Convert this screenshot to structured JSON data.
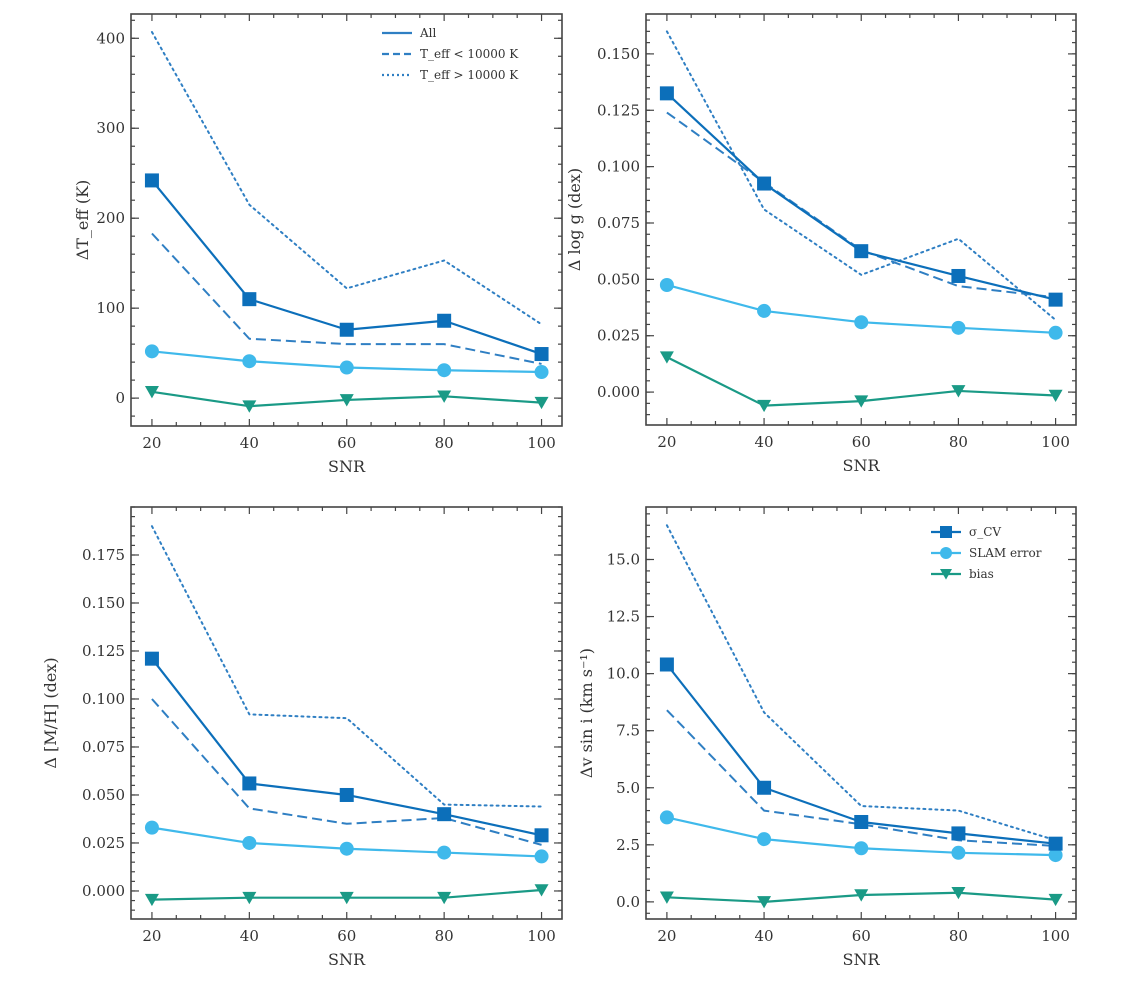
{
  "figure": {
    "colors": {
      "sigma_cv": "#0C6FBA",
      "slam_error": "#3FB9EB",
      "bias": "#1A9A86",
      "subset": "#2F7FC3",
      "frame": "#444444",
      "text": "#333333"
    }
  },
  "chart_data": [
    {
      "type": "line",
      "panel": "top-left",
      "title": "",
      "xlabel": "SNR",
      "ylabel": "ΔT_eff (K)",
      "x": [
        20,
        40,
        60,
        80,
        100
      ],
      "xlim": [
        15.7,
        104.2
      ],
      "ylim": [
        -31,
        427
      ],
      "xticks": [
        20,
        40,
        60,
        80,
        100
      ],
      "xtick_labels": [
        "20",
        "40",
        "60",
        "80",
        "100"
      ],
      "yticks": [
        0,
        100,
        200,
        300,
        400
      ],
      "ytick_labels": [
        "0",
        "100",
        "200",
        "300",
        "400"
      ],
      "yminor": 20,
      "grid": false,
      "legend": {
        "placement": "top-right",
        "entries": [
          {
            "label": "All",
            "style": "solid"
          },
          {
            "label": "T_eff < 10000 K",
            "style": "dashed"
          },
          {
            "label": "T_eff > 10000 K",
            "style": "dotted"
          }
        ]
      },
      "series": [
        {
          "name": "σ_CV (All)",
          "key": "sigma_cv",
          "style": "solid",
          "marker": "square",
          "values": [
            242,
            110,
            76,
            86,
            49
          ]
        },
        {
          "name": "σ_CV (T_eff < 10000 K)",
          "key": "subset",
          "style": "dashed",
          "marker": "none",
          "values": [
            183,
            66,
            60,
            60,
            38
          ]
        },
        {
          "name": "σ_CV (T_eff > 10000 K)",
          "key": "subset",
          "style": "dotted",
          "marker": "none",
          "values": [
            407,
            215,
            122,
            153,
            82
          ]
        },
        {
          "name": "SLAM error",
          "key": "slam_error",
          "style": "solid",
          "marker": "circle",
          "values": [
            52,
            41,
            34,
            31,
            29
          ]
        },
        {
          "name": "bias",
          "key": "bias",
          "style": "solid",
          "marker": "triangle-down",
          "values": [
            7,
            -9,
            -2,
            2,
            -5
          ]
        }
      ]
    },
    {
      "type": "line",
      "panel": "top-right",
      "title": "",
      "xlabel": "SNR",
      "ylabel": "Δ log g (dex)",
      "x": [
        20,
        40,
        60,
        80,
        100
      ],
      "xlim": [
        15.7,
        104.2
      ],
      "ylim": [
        -0.0146,
        0.1677
      ],
      "xticks": [
        20,
        40,
        60,
        80,
        100
      ],
      "xtick_labels": [
        "20",
        "40",
        "60",
        "80",
        "100"
      ],
      "yticks": [
        0.0,
        0.025,
        0.05,
        0.075,
        0.1,
        0.125,
        0.15
      ],
      "ytick_labels": [
        "0.000",
        "0.025",
        "0.050",
        "0.075",
        "0.100",
        "0.125",
        "0.150"
      ],
      "yminor": 0.005,
      "grid": false,
      "legend": null,
      "series": [
        {
          "name": "σ_CV (All)",
          "key": "sigma_cv",
          "style": "solid",
          "marker": "square",
          "values": [
            0.1325,
            0.0925,
            0.0625,
            0.0515,
            0.041
          ]
        },
        {
          "name": "σ_CV (T_eff < 10000 K)",
          "key": "subset",
          "style": "dashed",
          "marker": "none",
          "values": [
            0.124,
            0.093,
            0.063,
            0.047,
            0.042
          ]
        },
        {
          "name": "σ_CV (T_eff > 10000 K)",
          "key": "subset",
          "style": "dotted",
          "marker": "none",
          "values": [
            0.16,
            0.081,
            0.052,
            0.068,
            0.032
          ]
        },
        {
          "name": "SLAM error",
          "key": "slam_error",
          "style": "solid",
          "marker": "circle",
          "values": [
            0.0475,
            0.036,
            0.031,
            0.0285,
            0.0263
          ]
        },
        {
          "name": "bias",
          "key": "bias",
          "style": "solid",
          "marker": "triangle-down",
          "values": [
            0.0155,
            -0.006,
            -0.004,
            0.0005,
            -0.0015
          ]
        }
      ]
    },
    {
      "type": "line",
      "panel": "bottom-left",
      "title": "",
      "xlabel": "SNR",
      "ylabel": "Δ [M/H] (dex)",
      "x": [
        20,
        40,
        60,
        80,
        100
      ],
      "xlim": [
        15.7,
        104.2
      ],
      "ylim": [
        -0.0146,
        0.2
      ],
      "xticks": [
        20,
        40,
        60,
        80,
        100
      ],
      "xtick_labels": [
        "20",
        "40",
        "60",
        "80",
        "100"
      ],
      "yticks": [
        0.0,
        0.025,
        0.05,
        0.075,
        0.1,
        0.125,
        0.15,
        0.175
      ],
      "ytick_labels": [
        "0.000",
        "0.025",
        "0.050",
        "0.075",
        "0.100",
        "0.125",
        "0.150",
        "0.175"
      ],
      "yminor": 0.005,
      "grid": false,
      "legend": null,
      "series": [
        {
          "name": "σ_CV (All)",
          "key": "sigma_cv",
          "style": "solid",
          "marker": "square",
          "values": [
            0.121,
            0.056,
            0.05,
            0.04,
            0.029
          ]
        },
        {
          "name": "σ_CV (T_eff < 10000 K)",
          "key": "subset",
          "style": "dashed",
          "marker": "none",
          "values": [
            0.1,
            0.043,
            0.035,
            0.038,
            0.024
          ]
        },
        {
          "name": "σ_CV (T_eff > 10000 K)",
          "key": "subset",
          "style": "dotted",
          "marker": "none",
          "values": [
            0.19,
            0.092,
            0.09,
            0.045,
            0.044
          ]
        },
        {
          "name": "SLAM error",
          "key": "slam_error",
          "style": "solid",
          "marker": "circle",
          "values": [
            0.033,
            0.025,
            0.022,
            0.02,
            0.018
          ]
        },
        {
          "name": "bias",
          "key": "bias",
          "style": "solid",
          "marker": "triangle-down",
          "values": [
            -0.0045,
            -0.0035,
            -0.0035,
            -0.0035,
            0.0005
          ]
        }
      ]
    },
    {
      "type": "line",
      "panel": "bottom-right",
      "title": "",
      "xlabel": "SNR",
      "ylabel": "Δv sin i (km s⁻¹)",
      "x": [
        20,
        40,
        60,
        80,
        100
      ],
      "xlim": [
        15.7,
        104.2
      ],
      "ylim": [
        -0.75,
        17.3
      ],
      "xticks": [
        20,
        40,
        60,
        80,
        100
      ],
      "xtick_labels": [
        "20",
        "40",
        "60",
        "80",
        "100"
      ],
      "yticks": [
        0.0,
        2.5,
        5.0,
        7.5,
        10.0,
        12.5,
        15.0
      ],
      "ytick_labels": [
        "0.0",
        "2.5",
        "5.0",
        "7.5",
        "10.0",
        "12.5",
        "15.0"
      ],
      "yminor": 0.5,
      "grid": false,
      "legend": {
        "placement": "top-right",
        "entries": [
          {
            "label": "σ_CV",
            "key": "sigma_cv",
            "marker": "square"
          },
          {
            "label": "SLAM error",
            "key": "slam_error",
            "marker": "circle"
          },
          {
            "label": "bias",
            "key": "bias",
            "marker": "triangle-down"
          }
        ]
      },
      "series": [
        {
          "name": "σ_CV (All)",
          "key": "sigma_cv",
          "style": "solid",
          "marker": "square",
          "values": [
            10.4,
            5.0,
            3.5,
            3.0,
            2.55
          ]
        },
        {
          "name": "σ_CV (T_eff < 10000 K)",
          "key": "subset",
          "style": "dashed",
          "marker": "none",
          "values": [
            8.4,
            4.0,
            3.4,
            2.7,
            2.45
          ]
        },
        {
          "name": "σ_CV (T_eff > 10000 K)",
          "key": "subset",
          "style": "dotted",
          "marker": "none",
          "values": [
            16.5,
            8.3,
            4.2,
            4.0,
            2.7
          ]
        },
        {
          "name": "SLAM error",
          "key": "slam_error",
          "style": "solid",
          "marker": "circle",
          "values": [
            3.7,
            2.75,
            2.35,
            2.15,
            2.05
          ]
        },
        {
          "name": "bias",
          "key": "bias",
          "style": "solid",
          "marker": "triangle-down",
          "values": [
            0.2,
            0.0,
            0.3,
            0.4,
            0.1
          ]
        }
      ]
    }
  ]
}
